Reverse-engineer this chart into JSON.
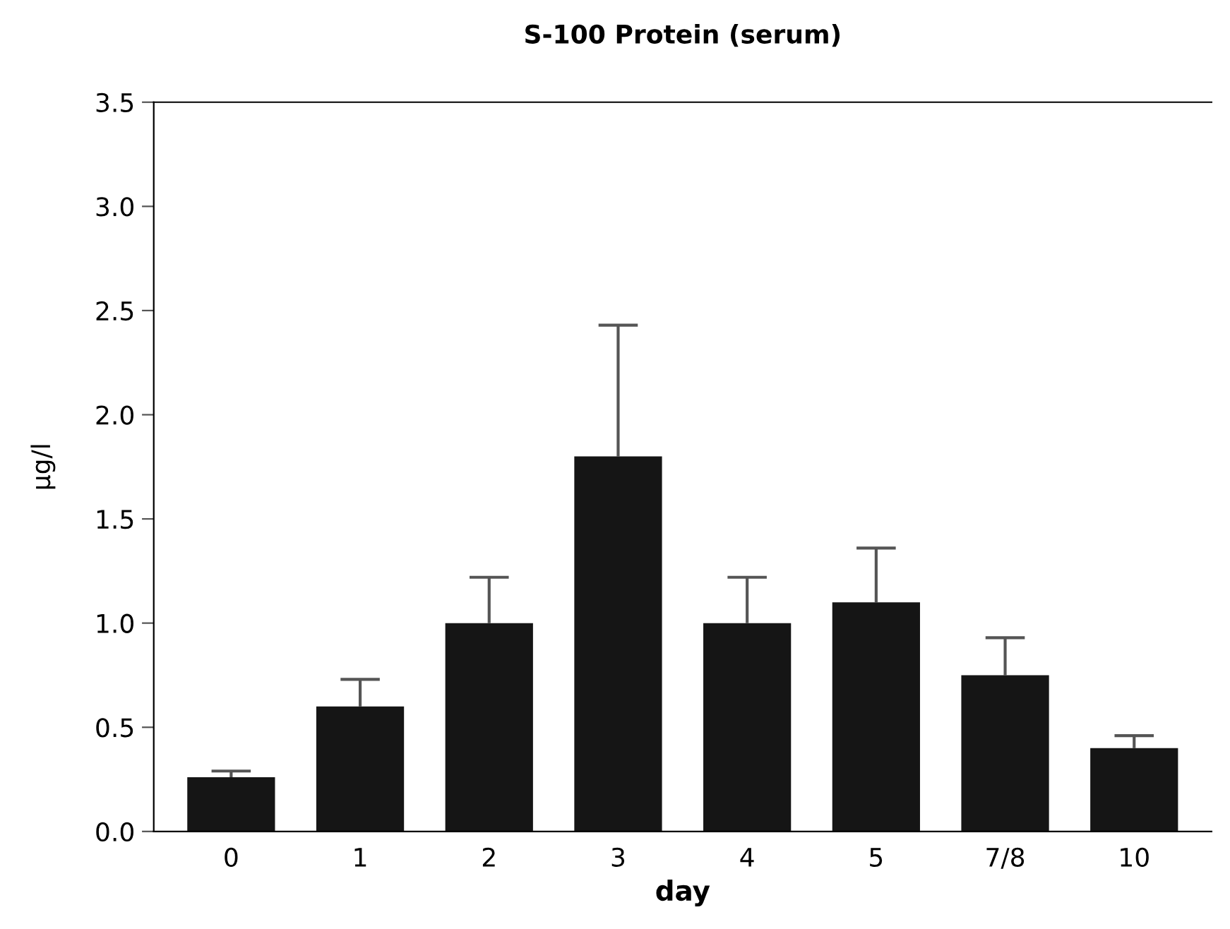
{
  "chart_data": {
    "type": "bar",
    "title": "S-100 Protein (serum)",
    "xlabel": "day",
    "ylabel": "µg/l",
    "categories": [
      "0",
      "1",
      "2",
      "3",
      "4",
      "5",
      "7/8",
      "10"
    ],
    "values": [
      0.26,
      0.6,
      1.0,
      1.8,
      1.0,
      1.1,
      0.75,
      0.4
    ],
    "errors": [
      [
        0.26,
        0.29
      ],
      [
        0.6,
        0.73
      ],
      [
        1.0,
        1.22
      ],
      [
        1.8,
        2.43
      ],
      [
        1.0,
        1.22
      ],
      [
        1.1,
        1.36
      ],
      [
        0.75,
        0.93
      ],
      [
        0.4,
        0.46
      ]
    ],
    "color": "#151515",
    "ylim": [
      0,
      3.5
    ],
    "yticks": [
      {
        "value": 0,
        "label": "0.0"
      },
      0.5,
      {
        "value": 1,
        "label": "1.0"
      },
      1.5,
      {
        "value": 2,
        "label": "2.0"
      },
      2.5,
      {
        "value": 3,
        "label": "3.0"
      },
      3.5
    ],
    "grid": false,
    "legend": false
  }
}
